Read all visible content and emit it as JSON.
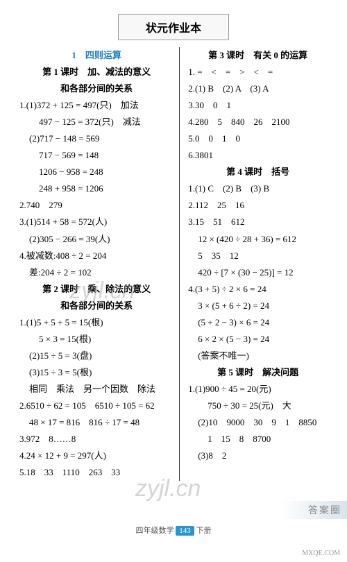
{
  "title": "状元作业本",
  "left": {
    "chapter_num": "1　四则运算",
    "sec1_title1": "第 1 课时　加、减法的意义",
    "sec1_title2": "和各部分间的关系",
    "l1": "1.(1)372 + 125 = 497(只)　加法",
    "l2": "497 − 125 = 372(只)　减法",
    "l3": "(2)717 − 148 = 569",
    "l4": "717 − 569 = 148",
    "l5": "1206 − 958 = 248",
    "l6": "248 + 958 = 1206",
    "l7": "2.740　279",
    "l8": "3.(1)514 + 58 = 572(人)",
    "l9": "(2)305 − 266 = 39(人)",
    "l10": "4.被减数:408 ÷ 2 = 204",
    "l11": "差:204 ÷ 2 = 102",
    "sec2_title1": "第 2 课时　乘、除法的意义",
    "sec2_title2": "和各部分间的关系",
    "l12": "1.(1)5 + 5 + 5 = 15(根)",
    "l13": "5 × 3 = 15(根)",
    "l14": "(2)15 ÷ 5 = 3(盘)",
    "l15": "(3)15 ÷ 3 = 5(根)",
    "l16": "相同　乘法　另一个因数　除法",
    "l17": "2.6510 ÷ 62 = 105　6510 ÷ 105 = 62",
    "l18": "48 × 17 = 816　816 ÷ 17 = 48",
    "l19": "3.972　8……8",
    "l20": "4.24 × 12 + 9 = 297(人)",
    "l21": "5.18　33　1110　263　33"
  },
  "right": {
    "sec3_title": "第 3 课时　有关 0 的运算",
    "r1": "1. =　<　=　>　<　=",
    "r2": "2.(1) B　(2) A　(3) A",
    "r3": "3.30　0　1",
    "r4": "4.280　5　840　26　2100",
    "r5": "5.0　0　1　0",
    "r6": "6.3801",
    "sec4_title": "第 4 课时　括号",
    "r7": "1.(1) C　(2) B　(3) B",
    "r8": "2.112　25　16",
    "r9": "3.15　51　612",
    "r10": "12 × (420 ÷ 28 + 36) = 612",
    "r11": "5　35　12",
    "r12": "420 ÷ [7 × (30 − 25)] = 12",
    "r13": "4.(3 + 5) ÷ 2 × 6 = 24",
    "r14": "3 × (5 + 6 ÷ 2) = 24",
    "r15": "(5 + 2 − 3) × 6 = 24",
    "r16": "6 × 2 × (5 − 3) = 24",
    "r17": "(答案不唯一)",
    "sec5_title": "第 5 课时　解决问题",
    "r18": "1.(1)900 ÷ 45 = 20(元)",
    "r19": "750 ÷ 30 = 25(元)　大",
    "r20": "(2)10　9000　30　9　1　8850",
    "r21": "1　15　8　8700",
    "r22": "(3)8　2"
  },
  "watermark": "zyjl.cn",
  "footer_left": "四年级数学",
  "footer_page": "143",
  "footer_right": "下册",
  "corner_tag": "答案圈",
  "corner_logo": "MXQE.COM"
}
